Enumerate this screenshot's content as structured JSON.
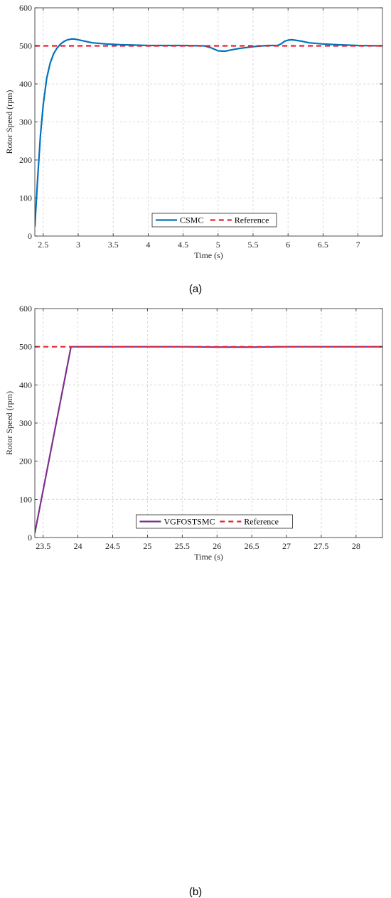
{
  "chart_data": [
    {
      "type": "line",
      "caption": "(a)",
      "xlabel": "Time (s)",
      "ylabel": "Rotor Speed (rpm)",
      "xlim": [
        2.38,
        7.35
      ],
      "ylim": [
        0,
        600
      ],
      "xticks": [
        2.5,
        3,
        3.5,
        4,
        4.5,
        5,
        5.5,
        6,
        6.5,
        7
      ],
      "xtick_labels": [
        "2.5",
        "3",
        "3.5",
        "4",
        "4.5",
        "5",
        "5.5",
        "6",
        "6.5",
        "7"
      ],
      "yticks": [
        0,
        100,
        200,
        300,
        400,
        500,
        600
      ],
      "ytick_labels": [
        "0",
        "100",
        "200",
        "300",
        "400",
        "500",
        "600"
      ],
      "grid": true,
      "legend_position": "bottom-center",
      "series": [
        {
          "name": "CSMC",
          "color": "#0072BD",
          "style": "solid",
          "x": [
            2.38,
            2.42,
            2.46,
            2.5,
            2.55,
            2.6,
            2.65,
            2.7,
            2.75,
            2.8,
            2.85,
            2.9,
            2.95,
            3.0,
            3.1,
            3.2,
            3.4,
            3.6,
            3.8,
            4.0,
            4.5,
            4.8,
            4.9,
            5.0,
            5.1,
            5.2,
            5.3,
            5.5,
            5.7,
            5.85,
            5.9,
            5.95,
            6.0,
            6.05,
            6.1,
            6.2,
            6.3,
            6.5,
            6.7,
            7.0,
            7.35
          ],
          "y": [
            25,
            150,
            265,
            345,
            415,
            455,
            480,
            495,
            505,
            512,
            516,
            518,
            518,
            516,
            512,
            508,
            505,
            503,
            502,
            501,
            501,
            500,
            495,
            487,
            486,
            490,
            493,
            498,
            501,
            501,
            505,
            512,
            515,
            516,
            515,
            512,
            508,
            505,
            503,
            501,
            500
          ]
        },
        {
          "name": "Reference",
          "color": "#E8222D",
          "style": "dashed",
          "x": [
            2.38,
            7.35
          ],
          "y": [
            500,
            500
          ]
        }
      ]
    },
    {
      "type": "line",
      "caption": "(b)",
      "xlabel": "Time (s)",
      "ylabel": "Rotor Speed (rpm)",
      "xlim": [
        23.38,
        28.38
      ],
      "ylim": [
        0,
        600
      ],
      "xticks": [
        23.5,
        24,
        24.5,
        25,
        25.5,
        26,
        26.5,
        27,
        27.5,
        28
      ],
      "xtick_labels": [
        "23.5",
        "24",
        "24.5",
        "25",
        "25.5",
        "26",
        "26.5",
        "27",
        "27.5",
        "28"
      ],
      "yticks": [
        0,
        100,
        200,
        300,
        400,
        500,
        600
      ],
      "ytick_labels": [
        "0",
        "100",
        "200",
        "300",
        "400",
        "500",
        "600"
      ],
      "grid": true,
      "legend_position": "bottom-center",
      "series": [
        {
          "name": "VGFOSTSMC",
          "color": "#7E2F8E",
          "style": "solid",
          "x": [
            23.38,
            23.9,
            24.5,
            25.5,
            26.0,
            26.5,
            27.0,
            27.5,
            28.0,
            28.38
          ],
          "y": [
            12,
            500,
            500,
            500,
            499,
            499,
            500,
            500,
            500,
            500
          ]
        },
        {
          "name": "Reference",
          "color": "#E8222D",
          "style": "dashed",
          "x": [
            23.38,
            28.38
          ],
          "y": [
            500,
            500
          ]
        }
      ]
    }
  ]
}
